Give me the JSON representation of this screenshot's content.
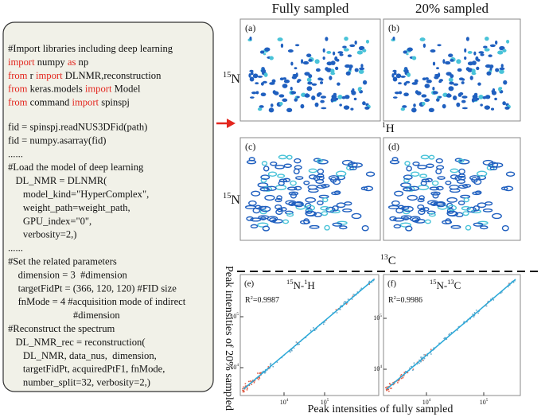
{
  "code": {
    "lines": [
      [
        {
          "text": "#Import libraries including deep learning"
        }
      ],
      [
        {
          "text": "import",
          "color": "#e3261e"
        },
        {
          "text": " numpy "
        },
        {
          "text": "as",
          "color": "#e3261e"
        },
        {
          "text": " np"
        }
      ],
      [
        {
          "text": "from",
          "color": "#e3261e"
        },
        {
          "text": " r "
        },
        {
          "text": "import",
          "color": "#e3261e"
        },
        {
          "text": " DLNMR,reconstruction"
        }
      ],
      [
        {
          "text": "from",
          "color": "#e3261e"
        },
        {
          "text": " keras.models "
        },
        {
          "text": "import",
          "color": "#e3261e"
        },
        {
          "text": " Model"
        }
      ],
      [
        {
          "text": "from",
          "color": "#e3261e"
        },
        {
          "text": " command "
        },
        {
          "text": "import",
          "color": "#e3261e"
        },
        {
          "text": " spinspj"
        }
      ],
      [
        {
          "text": "fid = spinspj.readNUS3DFid(path)"
        }
      ],
      [
        {
          "text": "fid = numpy.asarray(fid)"
        }
      ],
      [
        {
          "text": "......"
        }
      ],
      [
        {
          "text": "#Load the model of deep learning"
        }
      ],
      [
        {
          "text": "   DL_NMR = DLNMR("
        }
      ],
      [
        {
          "text": "      model_kind=\"HyperComplex\","
        }
      ],
      [
        {
          "text": "      weight_path=weight_path,"
        }
      ],
      [
        {
          "text": "      GPU_index=\"0\","
        }
      ],
      [
        {
          "text": "      verbosity=2,)"
        }
      ],
      [
        {
          "text": "......"
        }
      ],
      [
        {
          "text": "#Set the related parameters"
        }
      ],
      [
        {
          "text": "    dimension = 3  #dimension"
        }
      ],
      [
        {
          "text": "    targetFidPt = (366, 120, 120) #FID size"
        }
      ],
      [
        {
          "text": "    fnMode = 4 #acquisition mode of indirect"
        }
      ],
      [
        {
          "text": "                          #dimension"
        }
      ],
      [
        {
          "text": "#Reconstruct the spectrum"
        }
      ],
      [
        {
          "text": "   DL_NMR_rec = reconstruction("
        }
      ],
      [
        {
          "text": "      DL_NMR, data_nus,  dimension,"
        }
      ],
      [
        {
          "text": "      targetFidPt, acquiredPtF1, fnMode,"
        }
      ],
      [
        {
          "text": "      number_split=32, verbosity=2,)"
        }
      ]
    ]
  },
  "headers": [
    "Fully sampled",
    "20% sampled"
  ],
  "panels": [
    "(a)",
    "(b)",
    "(c)",
    "(d)"
  ],
  "axis_labels": {
    "n15_top": [
      {
        "text": "15",
        "sup": true
      },
      {
        "text": "N"
      }
    ],
    "h1": [
      {
        "text": "1",
        "sup": true
      },
      {
        "text": "H"
      }
    ],
    "n15_bottom": [
      {
        "text": "15",
        "sup": true
      },
      {
        "text": "N"
      }
    ],
    "c13": [
      {
        "text": "13",
        "sup": true
      },
      {
        "text": "C"
      }
    ],
    "y": "Peak intensities of 20% sampled",
    "x": "Peak intensities of fully sampled"
  },
  "scatter": [
    {
      "label": "(e)",
      "title": [
        {
          "text": "15",
          "sup": true
        },
        {
          "text": "N-"
        },
        {
          "text": "1",
          "sup": true
        },
        {
          "text": "H"
        }
      ],
      "r2": [
        {
          "text": "R"
        },
        {
          "text": "2",
          "sup": true
        },
        {
          "text": "=0.9987"
        }
      ],
      "xticks": [
        [
          {
            "text": "10"
          },
          {
            "text": "4",
            "sup": true
          }
        ],
        [
          {
            "text": "10"
          },
          {
            "text": "5",
            "sup": true
          }
        ]
      ],
      "yticks": [
        [
          {
            "text": "10"
          },
          {
            "text": "5",
            "sup": true
          }
        ],
        [
          {
            "text": "10"
          },
          {
            "text": "4",
            "sup": true
          }
        ]
      ]
    },
    {
      "label": "(f)",
      "title": [
        {
          "text": "15",
          "sup": true
        },
        {
          "text": "N-"
        },
        {
          "text": "13",
          "sup": true
        },
        {
          "text": "C"
        }
      ],
      "r2": [
        {
          "text": "R"
        },
        {
          "text": "2",
          "sup": true
        },
        {
          "text": "=0.9986"
        }
      ],
      "xticks": [
        [
          {
            "text": "10"
          },
          {
            "text": "4",
            "sup": true
          }
        ],
        [
          {
            "text": "10"
          },
          {
            "text": "5",
            "sup": true
          }
        ]
      ],
      "yticks": [
        [
          {
            "text": "10"
          },
          {
            "text": "5",
            "sup": true
          }
        ],
        [
          {
            "text": "10"
          },
          {
            "text": "4",
            "sup": true
          }
        ]
      ]
    }
  ]
}
